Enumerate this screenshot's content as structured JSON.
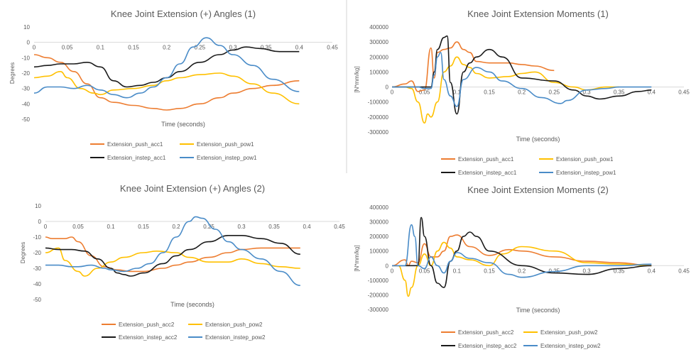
{
  "colors": {
    "orange": "#ED7D31",
    "yellow": "#FFC000",
    "black": "#1A1A1A",
    "blue": "#4A8CC8",
    "axis": "#D9D9D9",
    "text": "#595959"
  },
  "chart_data": [
    {
      "type": "line",
      "title": "Knee Joint Extension (+) Angles (1)",
      "xlabel": "Time (seconds)",
      "ylabel": "Degrees",
      "xlim": [
        0,
        0.45
      ],
      "ylim": [
        -50,
        10
      ],
      "xticks": [
        "0",
        "0.05",
        "0.1",
        "0.15",
        "0.2",
        "0.25",
        "0.3",
        "0.35",
        "0.4",
        "0.45"
      ],
      "yticks": [
        "10",
        "0",
        "-10",
        "-20",
        "-30",
        "-40",
        "-50"
      ],
      "legend": [
        "Extension_push_acc1",
        "Extension_push_pow1",
        "Extension_instep_acc1",
        "Extension_instep_pow1"
      ],
      "series": [
        {
          "name": "Extension_push_acc1",
          "color": "orange",
          "x": [
            0,
            0.02,
            0.04,
            0.06,
            0.08,
            0.1,
            0.12,
            0.15,
            0.18,
            0.2,
            0.22,
            0.25,
            0.28,
            0.3,
            0.33,
            0.36,
            0.4
          ],
          "y": [
            -8,
            -10,
            -13,
            -19,
            -27,
            -36,
            -39,
            -41,
            -43,
            -44,
            -43,
            -40,
            -36,
            -33,
            -30,
            -28,
            -25
          ]
        },
        {
          "name": "Extension_push_pow1",
          "color": "yellow",
          "x": [
            0,
            0.02,
            0.04,
            0.05,
            0.07,
            0.09,
            0.1,
            0.12,
            0.15,
            0.18,
            0.2,
            0.22,
            0.25,
            0.28,
            0.3,
            0.33,
            0.36,
            0.4
          ],
          "y": [
            -23,
            -22,
            -19,
            -23,
            -30,
            -33,
            -34,
            -31,
            -30,
            -28,
            -25,
            -23,
            -21,
            -20,
            -22,
            -27,
            -33,
            -40
          ]
        },
        {
          "name": "Extension_instep_acc1",
          "color": "black",
          "x": [
            0,
            0.02,
            0.04,
            0.06,
            0.08,
            0.1,
            0.12,
            0.14,
            0.16,
            0.18,
            0.2,
            0.22,
            0.25,
            0.28,
            0.3,
            0.32,
            0.34,
            0.37,
            0.4
          ],
          "y": [
            -16,
            -15,
            -14,
            -14,
            -13,
            -16,
            -25,
            -29,
            -28,
            -26,
            -23,
            -19,
            -13,
            -8,
            -5,
            -3,
            -4,
            -6,
            -6
          ]
        },
        {
          "name": "Extension_instep_pow1",
          "color": "blue",
          "x": [
            0,
            0.02,
            0.04,
            0.06,
            0.08,
            0.1,
            0.12,
            0.14,
            0.16,
            0.18,
            0.2,
            0.22,
            0.24,
            0.26,
            0.28,
            0.3,
            0.33,
            0.36,
            0.4
          ],
          "y": [
            -33,
            -29,
            -29,
            -30,
            -28,
            -31,
            -34,
            -36,
            -33,
            -29,
            -23,
            -14,
            -3,
            3,
            -2,
            -8,
            -15,
            -24,
            -32
          ]
        }
      ]
    },
    {
      "type": "line",
      "title": "Knee Joint Extension Moments (1)",
      "xlabel": "Time (seconds)",
      "ylabel": "[N*mm/kg]",
      "xlim": [
        0,
        0.45
      ],
      "ylim": [
        -300000,
        400000
      ],
      "xticks": [
        "0",
        "0.05",
        "0.1",
        "0.15",
        "0.2",
        "0.25",
        "0.3",
        "0.35",
        "0.4",
        "0.45"
      ],
      "yticks": [
        "400000",
        "300000",
        "200000",
        "100000",
        "0",
        "-100000",
        "-200000",
        "-300000"
      ],
      "legend": [
        "Extension_push_acc1",
        "Extension_push_pow1",
        "Extension_instep_acc1",
        "Extension_instep_pow1"
      ],
      "series": [
        {
          "name": "Extension_push_acc1",
          "color": "orange",
          "x": [
            0,
            0.02,
            0.03,
            0.04,
            0.05,
            0.06,
            0.065,
            0.07,
            0.08,
            0.09,
            0.1,
            0.11,
            0.12,
            0.13,
            0.15,
            0.18,
            0.2,
            0.22,
            0.25
          ],
          "y": [
            0,
            20000,
            40000,
            -30000,
            -20000,
            260000,
            60000,
            230000,
            250000,
            260000,
            300000,
            250000,
            230000,
            170000,
            160000,
            160000,
            150000,
            140000,
            110000
          ]
        },
        {
          "name": "Extension_push_pow1",
          "color": "yellow",
          "x": [
            0,
            0.02,
            0.03,
            0.04,
            0.05,
            0.055,
            0.06,
            0.07,
            0.08,
            0.09,
            0.1,
            0.11,
            0.12,
            0.13,
            0.15,
            0.18,
            0.2,
            0.22,
            0.25,
            0.28,
            0.3,
            0.33,
            0.35
          ],
          "y": [
            0,
            0,
            -10000,
            -100000,
            -240000,
            -180000,
            -200000,
            -100000,
            100000,
            140000,
            200000,
            150000,
            130000,
            90000,
            60000,
            70000,
            90000,
            100000,
            30000,
            0,
            -20000,
            0,
            0
          ]
        },
        {
          "name": "Extension_instep_acc1",
          "color": "black",
          "x": [
            0,
            0.02,
            0.04,
            0.05,
            0.06,
            0.065,
            0.07,
            0.08,
            0.085,
            0.09,
            0.1,
            0.11,
            0.12,
            0.13,
            0.15,
            0.17,
            0.2,
            0.25,
            0.28,
            0.3,
            0.32,
            0.35,
            0.38,
            0.4
          ],
          "y": [
            0,
            0,
            0,
            0,
            0,
            100000,
            250000,
            330000,
            340000,
            30000,
            -180000,
            100000,
            160000,
            200000,
            250000,
            200000,
            60000,
            40000,
            -20000,
            -60000,
            -80000,
            -60000,
            -30000,
            -20000
          ]
        },
        {
          "name": "Extension_instep_pow1",
          "color": "blue",
          "x": [
            0,
            0.02,
            0.04,
            0.05,
            0.06,
            0.065,
            0.07,
            0.075,
            0.08,
            0.09,
            0.1,
            0.11,
            0.13,
            0.15,
            0.17,
            0.2,
            0.23,
            0.26,
            0.27,
            0.3,
            0.33,
            0.35,
            0.38,
            0.4
          ],
          "y": [
            0,
            0,
            0,
            -10000,
            -10000,
            80000,
            200000,
            230000,
            50000,
            -60000,
            -130000,
            50000,
            130000,
            100000,
            40000,
            -10000,
            -70000,
            -110000,
            -90000,
            -20000,
            -10000,
            0,
            0,
            0
          ]
        }
      ]
    },
    {
      "type": "line",
      "title": "Knee Joint Extension (+) Angles (2)",
      "xlabel": "Time (seconds)",
      "ylabel": "Degrees",
      "xlim": [
        0,
        0.45
      ],
      "ylim": [
        -50,
        10
      ],
      "xticks": [
        "0",
        "0.05",
        "0.1",
        "0.15",
        "0.2",
        "0.25",
        "0.3",
        "0.35",
        "0.4",
        "0.45"
      ],
      "yticks": [
        "10",
        "0",
        "-10",
        "-20",
        "-30",
        "-40",
        "-50"
      ],
      "legend": [
        "Extension_push_acc2",
        "Extension_push_pow2",
        "Extension_instep_acc2",
        "Extension_instep_pow2"
      ],
      "series": [
        {
          "name": "Extension_push_acc2",
          "color": "orange",
          "x": [
            0,
            0.01,
            0.03,
            0.04,
            0.05,
            0.07,
            0.09,
            0.11,
            0.13,
            0.15,
            0.18,
            0.2,
            0.22,
            0.25,
            0.28,
            0.3,
            0.33,
            0.36,
            0.39
          ],
          "y": [
            -10,
            -11,
            -11,
            -10,
            -13,
            -22,
            -29,
            -31,
            -32,
            -32,
            -30,
            -28,
            -26,
            -23,
            -20,
            -18,
            -17,
            -17,
            -17
          ]
        },
        {
          "name": "Extension_push_pow2",
          "color": "yellow",
          "x": [
            0,
            0.02,
            0.03,
            0.05,
            0.06,
            0.08,
            0.1,
            0.12,
            0.15,
            0.17,
            0.2,
            0.22,
            0.25,
            0.28,
            0.3,
            0.33,
            0.36,
            0.39
          ],
          "y": [
            -20,
            -17,
            -25,
            -32,
            -35,
            -30,
            -26,
            -23,
            -20,
            -19,
            -20,
            -23,
            -26,
            -26,
            -24,
            -27,
            -29,
            -30
          ]
        },
        {
          "name": "Extension_instep_acc2",
          "color": "black",
          "x": [
            0,
            0.02,
            0.04,
            0.06,
            0.08,
            0.1,
            0.11,
            0.12,
            0.13,
            0.15,
            0.18,
            0.2,
            0.22,
            0.25,
            0.28,
            0.3,
            0.33,
            0.36,
            0.39
          ],
          "y": [
            -17,
            -18,
            -18,
            -19,
            -24,
            -30,
            -33,
            -34,
            -35,
            -33,
            -27,
            -22,
            -18,
            -13,
            -9,
            -9,
            -11,
            -14,
            -21
          ]
        },
        {
          "name": "Extension_instep_pow2",
          "color": "blue",
          "x": [
            0,
            0.02,
            0.04,
            0.05,
            0.07,
            0.09,
            0.1,
            0.12,
            0.14,
            0.16,
            0.18,
            0.2,
            0.22,
            0.23,
            0.24,
            0.26,
            0.28,
            0.3,
            0.33,
            0.36,
            0.39
          ],
          "y": [
            -28,
            -28,
            -29,
            -29,
            -28,
            -30,
            -31,
            -32,
            -30,
            -27,
            -20,
            -10,
            0,
            3,
            2,
            -5,
            -13,
            -18,
            -24,
            -32,
            -41
          ]
        }
      ]
    },
    {
      "type": "line",
      "title": "Knee Joint Extension Moments (2)",
      "xlabel": "Time (seconds)",
      "ylabel": "[N*mm/kg]",
      "xlim": [
        0,
        0.45
      ],
      "ylim": [
        -300000,
        400000
      ],
      "xticks": [
        "0",
        "0.05",
        "0.1",
        "0.15",
        "0.2",
        "0.25",
        "0.3",
        "0.35",
        "0.4",
        "0.45"
      ],
      "yticks": [
        "400000",
        "300000",
        "200000",
        "100000",
        "0",
        "-100000",
        "-200000",
        "-300000"
      ],
      "legend": [
        "Extension_push_acc2",
        "Extension_push_pow2",
        "Extension_instep_acc2",
        "Extension_instep_pow2"
      ],
      "series": [
        {
          "name": "Extension_push_acc2",
          "color": "orange",
          "x": [
            0,
            0.02,
            0.025,
            0.03,
            0.04,
            0.05,
            0.06,
            0.07,
            0.08,
            0.09,
            0.1,
            0.12,
            0.15,
            0.18,
            0.2,
            0.25,
            0.3,
            0.35,
            0.4
          ],
          "y": [
            0,
            40000,
            0,
            30000,
            20000,
            150000,
            60000,
            60000,
            100000,
            200000,
            210000,
            130000,
            70000,
            110000,
            100000,
            60000,
            30000,
            20000,
            0
          ]
        },
        {
          "name": "Extension_push_pow2",
          "color": "yellow",
          "x": [
            0,
            0.01,
            0.02,
            0.025,
            0.03,
            0.04,
            0.05,
            0.06,
            0.07,
            0.08,
            0.09,
            0.1,
            0.12,
            0.15,
            0.17,
            0.2,
            0.25,
            0.3,
            0.35,
            0.4
          ],
          "y": [
            0,
            0,
            -100000,
            -210000,
            -150000,
            0,
            80000,
            0,
            100000,
            160000,
            120000,
            60000,
            40000,
            0,
            80000,
            130000,
            100000,
            20000,
            10000,
            0
          ]
        },
        {
          "name": "Extension_instep_acc2",
          "color": "black",
          "x": [
            0,
            0.02,
            0.03,
            0.04,
            0.045,
            0.05,
            0.06,
            0.07,
            0.08,
            0.09,
            0.1,
            0.11,
            0.12,
            0.13,
            0.15,
            0.2,
            0.25,
            0.3,
            0.35,
            0.4
          ],
          "y": [
            0,
            0,
            0,
            0,
            330000,
            200000,
            0,
            -120000,
            -150000,
            30000,
            100000,
            200000,
            230000,
            200000,
            100000,
            0,
            -50000,
            -60000,
            -20000,
            0
          ]
        },
        {
          "name": "Extension_instep_pow2",
          "color": "blue",
          "x": [
            0,
            0.02,
            0.03,
            0.035,
            0.04,
            0.05,
            0.06,
            0.07,
            0.08,
            0.09,
            0.1,
            0.12,
            0.15,
            0.18,
            0.2,
            0.25,
            0.3,
            0.35,
            0.4
          ],
          "y": [
            0,
            0,
            280000,
            200000,
            0,
            -20000,
            60000,
            0,
            -50000,
            30000,
            90000,
            50000,
            20000,
            -60000,
            -80000,
            -40000,
            0,
            0,
            10000
          ]
        }
      ]
    }
  ]
}
